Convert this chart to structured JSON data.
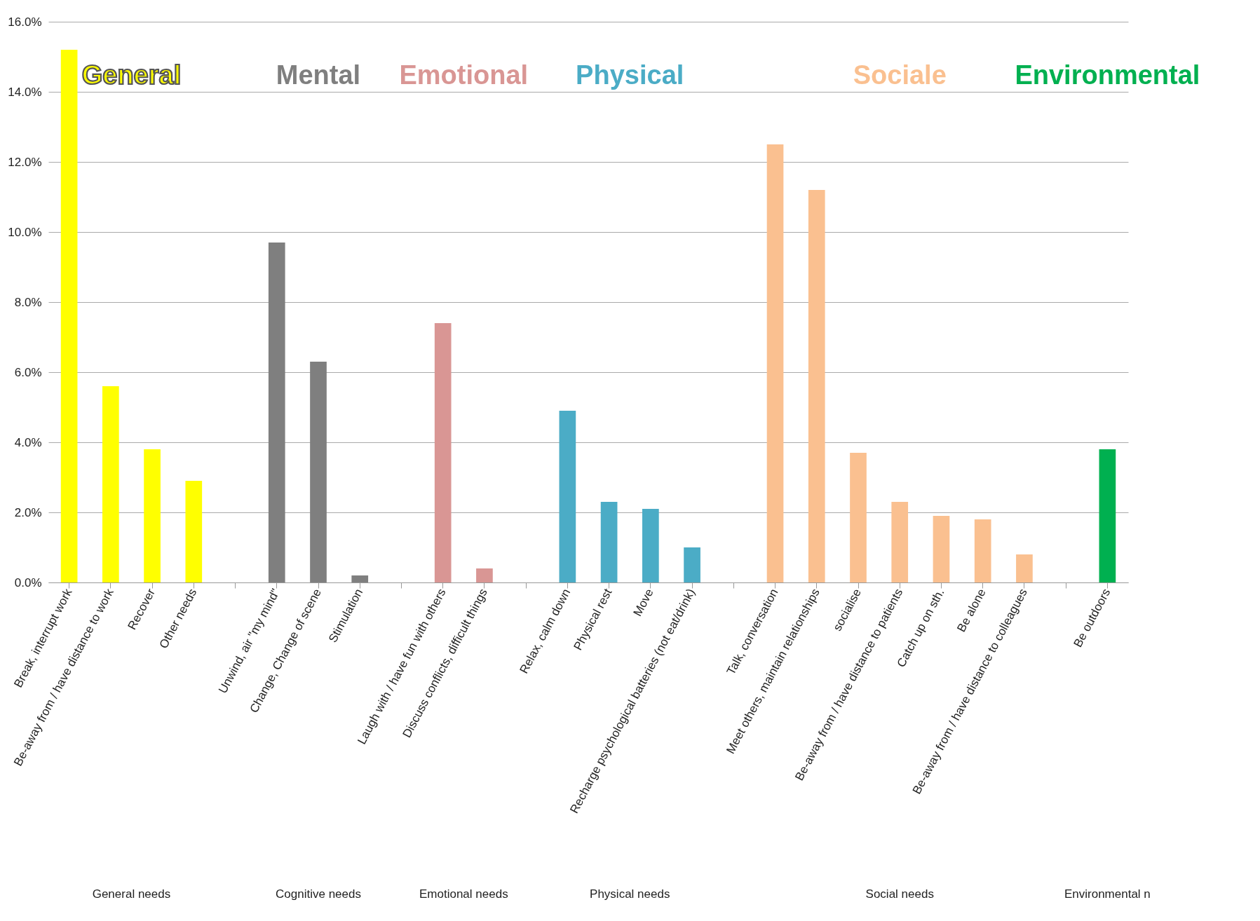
{
  "chart_data": {
    "type": "bar",
    "categories": [
      "Break, interrupt work",
      "Be-away from / have distance to work",
      "Recover",
      "Other needs",
      null,
      "Unwind, air \"my mind\"",
      "Change, Change of scene",
      "Stimulation",
      null,
      "Laugh with / have fun with others",
      "Discuss conflicts, difficult things",
      null,
      "Relax, calm down",
      "Physical rest",
      "Move",
      "Recharge psychological batteries (not eat/drink)",
      null,
      "Talk, conversation",
      "Meet others, maintain relationships",
      "socialise",
      "Be-away from / have distance to patients",
      "Catch up on sth.",
      "Be alone",
      "Be-away from / have distance to colleagues",
      null,
      "Be outdoors"
    ],
    "series": [
      {
        "name": "General",
        "color": "#ffff00",
        "values": [
          15.2,
          5.6,
          3.8,
          2.9,
          null,
          null,
          null,
          null,
          null,
          null,
          null,
          null,
          null,
          null,
          null,
          null,
          null,
          null,
          null,
          null,
          null,
          null,
          null,
          null,
          null,
          null
        ]
      },
      {
        "name": "Mental",
        "color": "#7f7f7f",
        "values": [
          null,
          null,
          null,
          null,
          null,
          9.7,
          6.3,
          0.2,
          null,
          null,
          null,
          null,
          null,
          null,
          null,
          null,
          null,
          null,
          null,
          null,
          null,
          null,
          null,
          null,
          null,
          null
        ]
      },
      {
        "name": "Emotional",
        "color": "#d99694",
        "values": [
          null,
          null,
          null,
          null,
          null,
          null,
          null,
          null,
          null,
          7.4,
          0.4,
          null,
          null,
          null,
          null,
          null,
          null,
          null,
          null,
          null,
          null,
          null,
          null,
          null,
          null,
          null
        ]
      },
      {
        "name": "Physical",
        "color": "#4bacc6",
        "values": [
          null,
          null,
          null,
          null,
          null,
          null,
          null,
          null,
          null,
          null,
          null,
          null,
          4.9,
          2.3,
          2.1,
          1.0,
          null,
          null,
          null,
          null,
          null,
          null,
          null,
          null,
          null,
          null
        ]
      },
      {
        "name": "Sociale",
        "color": "#fac090",
        "values": [
          null,
          null,
          null,
          null,
          null,
          null,
          null,
          null,
          null,
          null,
          null,
          null,
          null,
          null,
          null,
          null,
          null,
          12.5,
          11.2,
          3.7,
          2.3,
          1.9,
          1.8,
          0.8,
          null,
          null
        ]
      },
      {
        "name": "Environmental",
        "color": "#00b050",
        "values": [
          null,
          null,
          null,
          null,
          null,
          null,
          null,
          null,
          null,
          null,
          null,
          null,
          null,
          null,
          null,
          null,
          null,
          null,
          null,
          null,
          null,
          null,
          null,
          null,
          null,
          3.8
        ]
      }
    ],
    "ylim": [
      0,
      16
    ],
    "yticks": [
      {
        "value": 0,
        "label": "0.0%"
      },
      {
        "value": 2,
        "label": "2.0%"
      },
      {
        "value": 4,
        "label": "4.0%"
      },
      {
        "value": 6,
        "label": "6.0%"
      },
      {
        "value": 8,
        "label": "8.0%"
      },
      {
        "value": 10,
        "label": "10.0%"
      },
      {
        "value": 12,
        "label": "12.0%"
      },
      {
        "value": 14,
        "label": "14.0%"
      },
      {
        "value": 16,
        "label": "16.0%"
      }
    ],
    "grid": "y",
    "annotations": [
      "General needs",
      "Cognitive needs",
      "Emotional needs",
      "Physical needs",
      "Social needs",
      "Environmental n"
    ]
  }
}
